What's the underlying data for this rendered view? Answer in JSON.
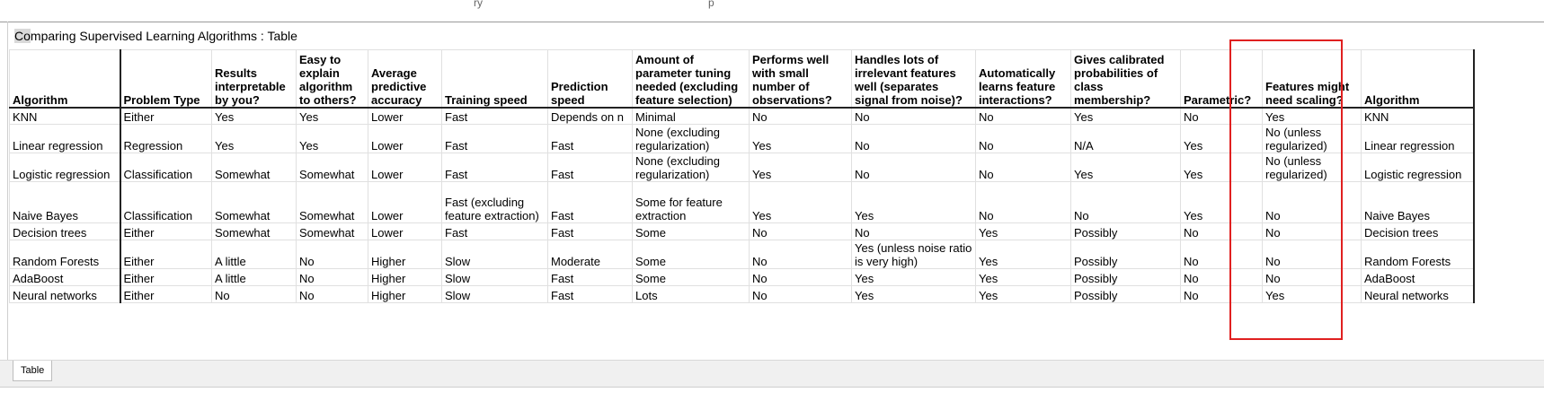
{
  "top_fragments": [
    "ry",
    "p"
  ],
  "sheet": {
    "title_prefix": "Co",
    "title_rest": "mparing Supervised Learning Algorithms : Table",
    "tab_label": "Table"
  },
  "table": {
    "headers": [
      "Algorithm",
      "Problem Type",
      "Results interpretable by you?",
      "Easy to explain algorithm to others?",
      "Average predictive accuracy",
      "Training speed",
      "Prediction speed",
      "Amount of parameter tuning needed (excluding feature selection)",
      "Performs well with small number of observations?",
      "Handles lots of irrelevant features well (separates signal from noise)?",
      "Automatically learns feature interactions?",
      "Gives calibrated probabilities of class membership?",
      "Parametric?",
      "Features might need scaling?",
      "Algorithm"
    ],
    "rows": [
      [
        "KNN",
        "Either",
        "Yes",
        "Yes",
        "Lower",
        "Fast",
        "Depends on n",
        "Minimal",
        "No",
        "No",
        "No",
        "Yes",
        "No",
        "Yes",
        "KNN"
      ],
      [
        "Linear regression",
        "Regression",
        "Yes",
        "Yes",
        "Lower",
        "Fast",
        "Fast",
        "None (excluding regularization)",
        "Yes",
        "No",
        "No",
        "N/A",
        "Yes",
        "No (unless regularized)",
        "Linear regression"
      ],
      [
        "Logistic regression",
        "Classification",
        "Somewhat",
        "Somewhat",
        "Lower",
        "Fast",
        "Fast",
        "None (excluding regularization)",
        "Yes",
        "No",
        "No",
        "Yes",
        "Yes",
        "No (unless regularized)",
        "Logistic regression"
      ],
      [
        "Naive Bayes",
        "Classification",
        "Somewhat",
        "Somewhat",
        "Lower",
        "Fast (excluding feature extraction)",
        "Fast",
        "Some for feature extraction",
        "Yes",
        "Yes",
        "No",
        "No",
        "Yes",
        "No",
        "Naive Bayes"
      ],
      [
        "Decision trees",
        "Either",
        "Somewhat",
        "Somewhat",
        "Lower",
        "Fast",
        "Fast",
        "Some",
        "No",
        "No",
        "Yes",
        "Possibly",
        "No",
        "No",
        "Decision trees"
      ],
      [
        "Random Forests",
        "Either",
        "A little",
        "No",
        "Higher",
        "Slow",
        "Moderate",
        "Some",
        "No",
        "Yes (unless noise ratio is very high)",
        "Yes",
        "Possibly",
        "No",
        "No",
        "Random Forests"
      ],
      [
        "AdaBoost",
        "Either",
        "A little",
        "No",
        "Higher",
        "Slow",
        "Fast",
        "Some",
        "No",
        "Yes",
        "Yes",
        "Possibly",
        "No",
        "No",
        "AdaBoost"
      ],
      [
        "Neural networks",
        "Either",
        "No",
        "No",
        "Higher",
        "Slow",
        "Fast",
        "Lots",
        "No",
        "Yes",
        "Yes",
        "Possibly",
        "No",
        "Yes",
        "Neural networks"
      ]
    ]
  },
  "annotation": {
    "color": "#e02020"
  }
}
